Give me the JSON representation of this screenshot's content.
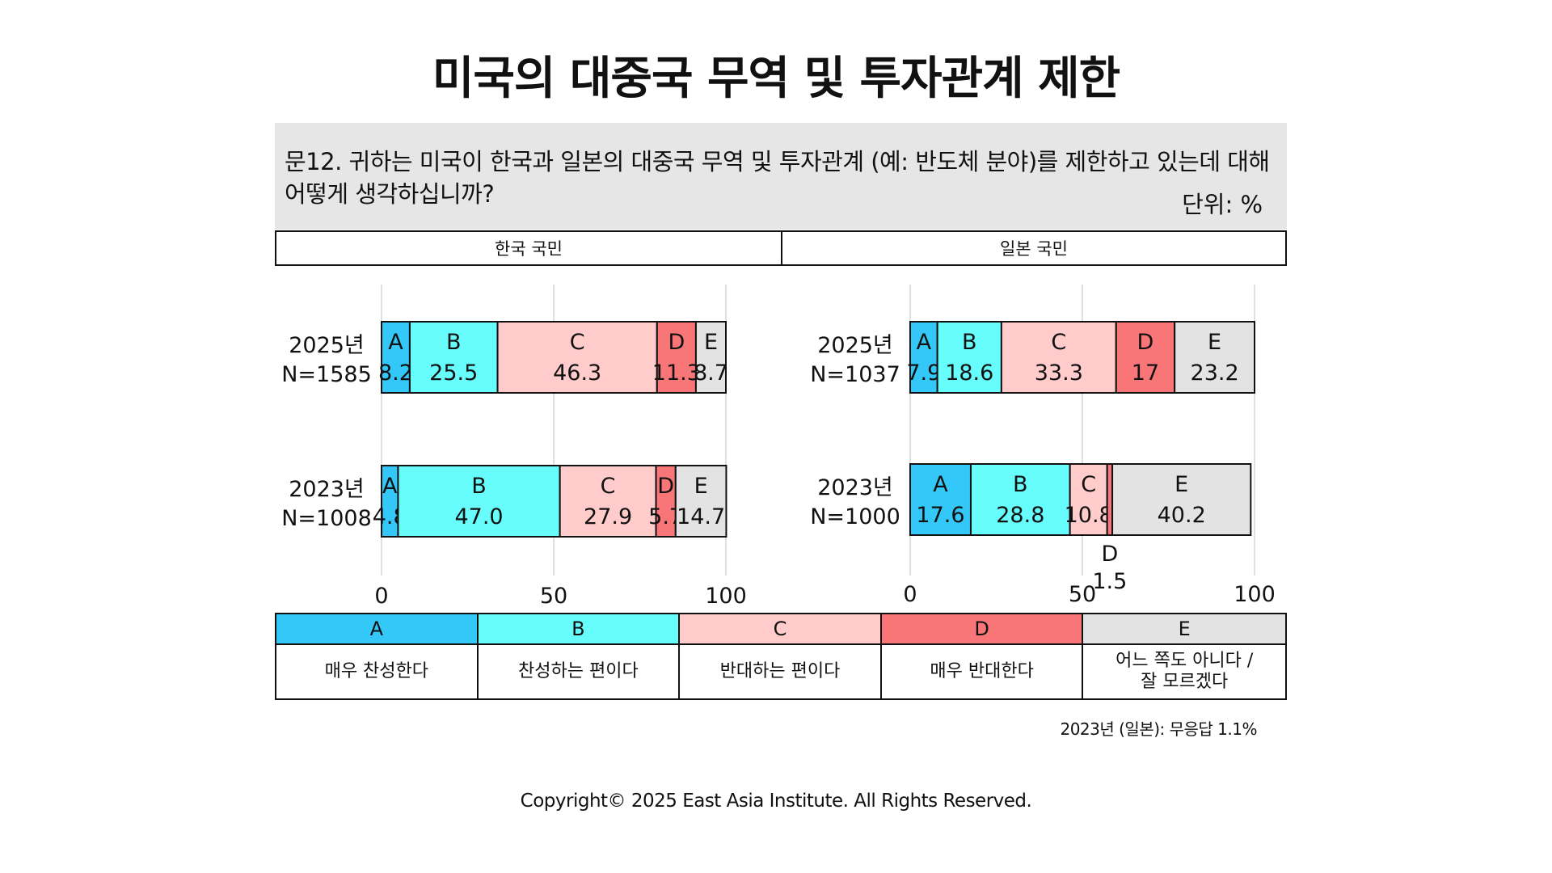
{
  "title": "미국의 대중국 무역 및 투자관계 제한",
  "question": "문12. 귀하는 미국이 한국과 일본의 대중국 무역 및 투자관계 (예: 반도체 분야)를 제한하고 있는데 대해 어떻게 생각하십니까?",
  "unit": "단위: %",
  "colors": {
    "A": "#33c8f7",
    "B": "#66fdfc",
    "C": "#ffcccb",
    "D": "#f87678",
    "E": "#e3e3e3"
  },
  "legend": [
    {
      "code": "A",
      "label": "매우 찬성한다"
    },
    {
      "code": "B",
      "label": "찬성하는 편이다"
    },
    {
      "code": "C",
      "label": "반대하는 편이다"
    },
    {
      "code": "D",
      "label": "매우 반대한다"
    },
    {
      "code": "E",
      "label": "어느 쪽도 아니다 /\n잘 모르겠다"
    }
  ],
  "footnote": "2023년 (일본): 무응답 1.1%",
  "copyright": "Copyright© 2025 East Asia Institute. All Rights Reserved.",
  "chart_data": [
    {
      "type": "bar",
      "title": "한국 국민",
      "stacked": true,
      "orientation": "horizontal",
      "categories": [
        "2025년 N=1585",
        "2023년 N=1008"
      ],
      "row_labels": [
        [
          "2025년",
          "N=1585"
        ],
        [
          "2023년",
          "N=1008"
        ]
      ],
      "series": [
        {
          "name": "A",
          "values": [
            8.2,
            4.8
          ],
          "labels": [
            "8.2",
            "4.8"
          ]
        },
        {
          "name": "B",
          "values": [
            25.5,
            47.0
          ],
          "labels": [
            "25.5",
            "47.0"
          ]
        },
        {
          "name": "C",
          "values": [
            46.3,
            27.9
          ],
          "labels": [
            "46.3",
            "27.9"
          ]
        },
        {
          "name": "D",
          "values": [
            11.3,
            5.7
          ],
          "labels": [
            "11.3",
            "5.7"
          ]
        },
        {
          "name": "E",
          "values": [
            8.7,
            14.7
          ],
          "labels": [
            "8.7",
            "14.7"
          ]
        }
      ],
      "xlim": [
        0,
        100
      ],
      "xticks": [
        "0",
        "50",
        "100"
      ],
      "grid": true
    },
    {
      "type": "bar",
      "title": "일본 국민",
      "stacked": true,
      "orientation": "horizontal",
      "categories": [
        "2025년 N=1037",
        "2023년 N=1000"
      ],
      "row_labels": [
        [
          "2025년",
          "N=1037"
        ],
        [
          "2023년",
          "N=1000"
        ]
      ],
      "series": [
        {
          "name": "A",
          "values": [
            7.9,
            17.6
          ],
          "labels": [
            "7.9",
            "17.6"
          ]
        },
        {
          "name": "B",
          "values": [
            18.6,
            28.8
          ],
          "labels": [
            "18.6",
            "28.8"
          ]
        },
        {
          "name": "C",
          "values": [
            33.3,
            10.8
          ],
          "labels": [
            "33.3",
            "10.8"
          ]
        },
        {
          "name": "D",
          "values": [
            17,
            1.5
          ],
          "labels": [
            "17",
            "1.5"
          ]
        },
        {
          "name": "E",
          "values": [
            23.2,
            40.2
          ],
          "labels": [
            "23.2",
            "40.2"
          ]
        }
      ],
      "xlim": [
        0,
        100
      ],
      "xticks": [
        "0",
        "50",
        "100"
      ],
      "grid": true
    }
  ]
}
